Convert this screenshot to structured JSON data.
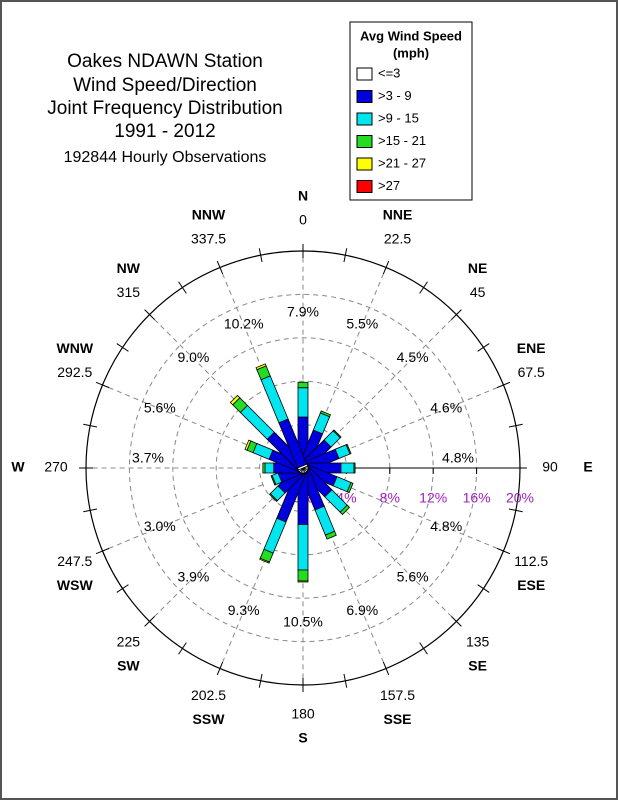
{
  "chart_data": {
    "type": "windrose",
    "title": [
      "Oakes NDAWN Station",
      "Wind Speed/Direction",
      "Joint Frequency Distribution",
      "1991 - 2012"
    ],
    "subtitle": "192844 Hourly Observations",
    "legend_title": [
      "Avg Wind Speed",
      "(mph)"
    ],
    "directions": [
      "N",
      "NNE",
      "NE",
      "ENE",
      "E",
      "ESE",
      "SE",
      "SSE",
      "S",
      "SSW",
      "SW",
      "WSW",
      "W",
      "WNW",
      "NW",
      "NNW"
    ],
    "degrees": [
      0,
      22.5,
      45,
      67.5,
      90,
      112.5,
      135,
      157.5,
      180,
      202.5,
      225,
      247.5,
      270,
      292.5,
      315,
      337.5
    ],
    "total_labels": [
      "7.9%",
      "5.5%",
      "4.5%",
      "4.6%",
      "4.8%",
      "4.8%",
      "5.6%",
      "6.9%",
      "10.5%",
      "9.3%",
      "3.9%",
      "3.0%",
      "3.7%",
      "5.6%",
      "9.0%",
      "10.2%"
    ],
    "series": [
      {
        "name": "<=3",
        "color": "#ffffff",
        "values": [
          0.2,
          0.2,
          0.2,
          0.2,
          0.2,
          0.2,
          0.2,
          0.2,
          0.2,
          0.2,
          0.2,
          0.2,
          0.2,
          0.2,
          0.2,
          0.2
        ]
      },
      {
        "name": ">3 - 9",
        "color": "#0000dd",
        "values": [
          4.5,
          3.4,
          3.0,
          3.2,
          3.3,
          3.0,
          3.1,
          3.8,
          5.0,
          5.0,
          2.6,
          2.1,
          2.5,
          3.0,
          4.0,
          4.5
        ]
      },
      {
        "name": ">9 - 15",
        "color": "#00e5ee",
        "values": [
          2.7,
          1.7,
          1.2,
          1.1,
          1.2,
          1.4,
          2.0,
          2.5,
          4.2,
          3.1,
          1.0,
          0.6,
          0.8,
          1.6,
          3.5,
          4.3
        ]
      },
      {
        "name": ">15 - 21",
        "color": "#22dd22",
        "values": [
          0.5,
          0.2,
          0.1,
          0.1,
          0.1,
          0.2,
          0.3,
          0.4,
          1.0,
          0.9,
          0.1,
          0.1,
          0.2,
          0.6,
          1.0,
          1.0
        ]
      },
      {
        "name": ">21 - 27",
        "color": "#ffff00",
        "values": [
          0,
          0,
          0,
          0,
          0,
          0,
          0,
          0,
          0.1,
          0.1,
          0,
          0,
          0,
          0.2,
          0.3,
          0.2
        ]
      },
      {
        "name": ">27",
        "color": "#ff0000",
        "values": [
          0,
          0,
          0,
          0,
          0,
          0,
          0,
          0,
          0,
          0,
          0,
          0,
          0,
          0,
          0,
          0
        ]
      }
    ],
    "rlim": [
      0,
      20
    ],
    "rticks": [
      {
        "value": 0,
        "label": "0%"
      },
      {
        "value": 4,
        "label": "4%"
      },
      {
        "value": 8,
        "label": "8%"
      },
      {
        "value": 12,
        "label": "12%"
      },
      {
        "value": 16,
        "label": "16%"
      },
      {
        "value": 20,
        "label": "20%"
      }
    ],
    "rtick_color": "#a020c0"
  }
}
